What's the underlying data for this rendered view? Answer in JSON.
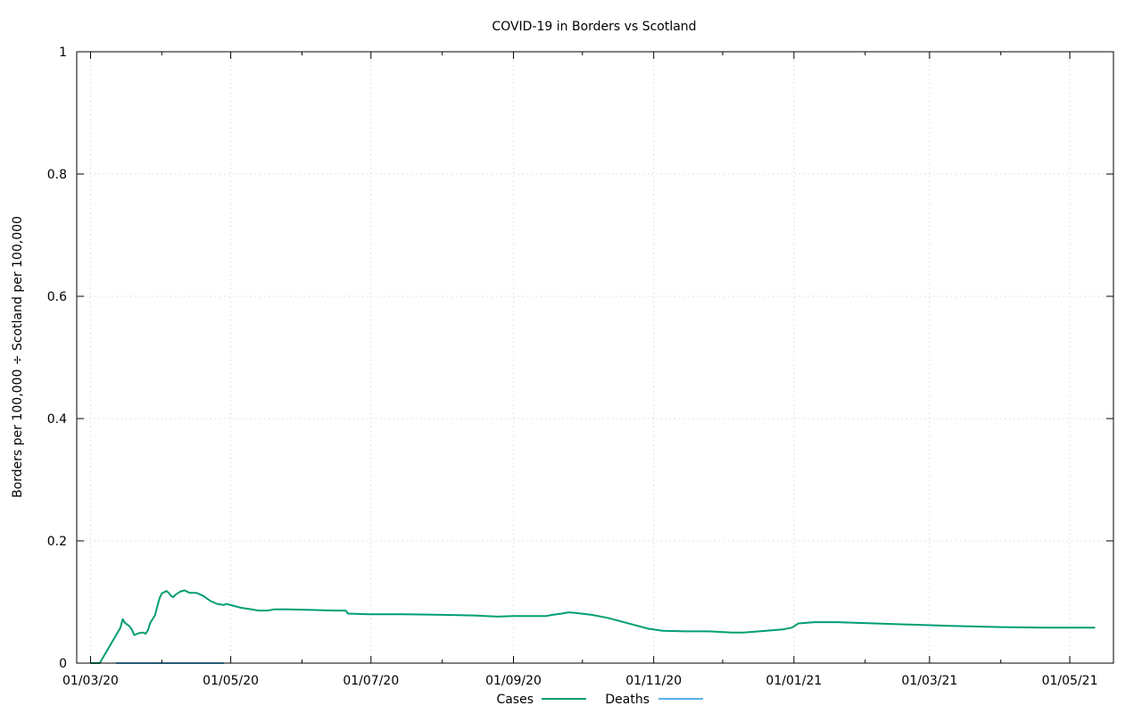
{
  "chart_data": {
    "type": "line",
    "title": "COVID-19 in Borders vs Scotland",
    "xlabel": "",
    "ylabel": "Borders per 100,000 ÷ Scotland per 100,000",
    "x_type": "date",
    "xlim": [
      "2020-02-24",
      "2021-05-20"
    ],
    "ylim": [
      0,
      1
    ],
    "x_ticks": [
      {
        "date": "2020-03-01",
        "label": "01/03/20"
      },
      {
        "date": "2020-05-01",
        "label": "01/05/20"
      },
      {
        "date": "2020-07-01",
        "label": "01/07/20"
      },
      {
        "date": "2020-09-01",
        "label": "01/09/20"
      },
      {
        "date": "2020-11-01",
        "label": "01/11/20"
      },
      {
        "date": "2021-01-01",
        "label": "01/01/21"
      },
      {
        "date": "2021-03-01",
        "label": "01/03/21"
      },
      {
        "date": "2021-05-01",
        "label": "01/05/21"
      }
    ],
    "y_ticks": [
      {
        "value": 0,
        "label": "0"
      },
      {
        "value": 0.2,
        "label": "0.2"
      },
      {
        "value": 0.4,
        "label": "0.4"
      },
      {
        "value": 0.6,
        "label": "0.6"
      },
      {
        "value": 0.8,
        "label": "0.8"
      },
      {
        "value": 1,
        "label": "1"
      }
    ],
    "grid": true,
    "legend_position": "bottom-center",
    "series": [
      {
        "name": "Cases",
        "color": "#009e73",
        "points": [
          [
            "2020-03-01",
            0
          ],
          [
            "2020-03-05",
            0
          ],
          [
            "2020-03-14",
            0.058
          ],
          [
            "2020-03-15",
            0.072
          ],
          [
            "2020-03-16",
            0.066
          ],
          [
            "2020-03-18",
            0.06
          ],
          [
            "2020-03-19",
            0.055
          ],
          [
            "2020-03-20",
            0.046
          ],
          [
            "2020-03-22",
            0.049
          ],
          [
            "2020-03-24",
            0.05
          ],
          [
            "2020-03-25",
            0.048
          ],
          [
            "2020-03-26",
            0.054
          ],
          [
            "2020-03-27",
            0.066
          ],
          [
            "2020-03-29",
            0.078
          ],
          [
            "2020-03-30",
            0.092
          ],
          [
            "2020-03-31",
            0.106
          ],
          [
            "2020-04-01",
            0.114
          ],
          [
            "2020-04-03",
            0.118
          ],
          [
            "2020-04-04",
            0.115
          ],
          [
            "2020-04-05",
            0.11
          ],
          [
            "2020-04-06",
            0.108
          ],
          [
            "2020-04-07",
            0.112
          ],
          [
            "2020-04-09",
            0.117
          ],
          [
            "2020-04-11",
            0.119
          ],
          [
            "2020-04-13",
            0.115
          ],
          [
            "2020-04-16",
            0.115
          ],
          [
            "2020-04-19",
            0.11
          ],
          [
            "2020-04-22",
            0.102
          ],
          [
            "2020-04-25",
            0.097
          ],
          [
            "2020-04-28",
            0.095
          ],
          [
            "2020-04-29",
            0.097
          ],
          [
            "2020-05-01",
            0.095
          ],
          [
            "2020-05-05",
            0.091
          ],
          [
            "2020-05-10",
            0.088
          ],
          [
            "2020-05-13",
            0.086
          ],
          [
            "2020-05-17",
            0.086
          ],
          [
            "2020-05-20",
            0.088
          ],
          [
            "2020-05-26",
            0.088
          ],
          [
            "2020-06-05",
            0.087
          ],
          [
            "2020-06-15",
            0.086
          ],
          [
            "2020-06-20",
            0.086
          ],
          [
            "2020-06-21",
            0.081
          ],
          [
            "2020-06-30",
            0.08
          ],
          [
            "2020-07-15",
            0.08
          ],
          [
            "2020-08-01",
            0.079
          ],
          [
            "2020-08-15",
            0.078
          ],
          [
            "2020-08-25",
            0.076
          ],
          [
            "2020-09-01",
            0.077
          ],
          [
            "2020-09-15",
            0.077
          ],
          [
            "2020-09-18",
            0.079
          ],
          [
            "2020-09-22",
            0.081
          ],
          [
            "2020-09-25",
            0.083
          ],
          [
            "2020-09-28",
            0.082
          ],
          [
            "2020-10-05",
            0.079
          ],
          [
            "2020-10-12",
            0.074
          ],
          [
            "2020-10-20",
            0.066
          ],
          [
            "2020-10-30",
            0.056
          ],
          [
            "2020-11-05",
            0.053
          ],
          [
            "2020-11-15",
            0.052
          ],
          [
            "2020-11-25",
            0.052
          ],
          [
            "2020-12-05",
            0.05
          ],
          [
            "2020-12-10",
            0.05
          ],
          [
            "2020-12-20",
            0.053
          ],
          [
            "2020-12-27",
            0.055
          ],
          [
            "2020-12-31",
            0.058
          ],
          [
            "2021-01-03",
            0.065
          ],
          [
            "2021-01-10",
            0.067
          ],
          [
            "2021-01-20",
            0.067
          ],
          [
            "2021-02-05",
            0.065
          ],
          [
            "2021-02-20",
            0.063
          ],
          [
            "2021-03-10",
            0.061
          ],
          [
            "2021-04-01",
            0.059
          ],
          [
            "2021-04-20",
            0.058
          ],
          [
            "2021-05-12",
            0.058
          ]
        ]
      },
      {
        "name": "Deaths",
        "color": "#56b4e9",
        "points": [
          [
            "2020-03-12",
            0
          ],
          [
            "2020-04-28",
            0
          ]
        ]
      }
    ]
  }
}
